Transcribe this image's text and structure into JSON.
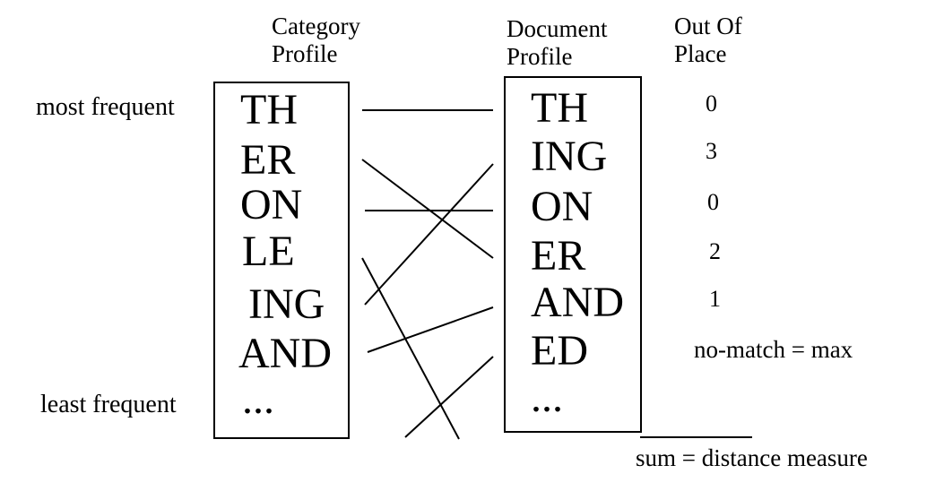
{
  "headers": {
    "category_profile": [
      "Category",
      "Profile"
    ],
    "document_profile": [
      "Document",
      "Profile"
    ],
    "out_of_place": [
      "Out Of",
      "Place"
    ]
  },
  "side_labels": {
    "most_frequent": "most frequent",
    "least_frequent": "least frequent"
  },
  "category_ngrams": [
    "TH",
    "ER",
    "ON",
    "LE",
    "ING",
    "AND",
    "..."
  ],
  "document_ngrams": [
    "TH",
    "ING",
    "ON",
    "ER",
    "AND",
    "ED",
    "..."
  ],
  "out_of_place_values": [
    "0",
    "3",
    "0",
    "2",
    "1"
  ],
  "no_match_note": "no-match = max",
  "sum_note": "sum = distance measure"
}
